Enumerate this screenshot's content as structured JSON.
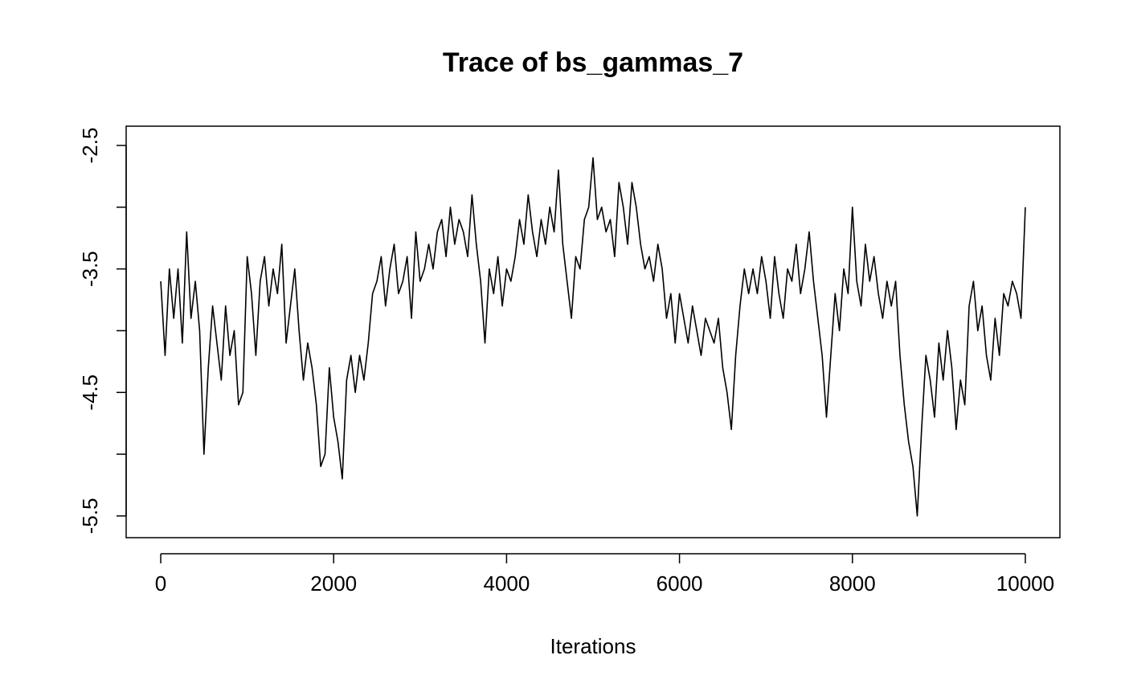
{
  "chart_data": {
    "type": "line",
    "title": "Trace of bs_gammas_7",
    "x_label": "Iterations",
    "x": [
      0,
      50,
      100,
      150,
      200,
      250,
      300,
      350,
      400,
      450,
      500,
      550,
      600,
      650,
      700,
      750,
      800,
      850,
      900,
      950,
      1000,
      1050,
      1100,
      1150,
      1200,
      1250,
      1300,
      1350,
      1400,
      1450,
      1500,
      1550,
      1600,
      1650,
      1700,
      1750,
      1800,
      1850,
      1900,
      1950,
      2000,
      2050,
      2100,
      2150,
      2200,
      2250,
      2300,
      2350,
      2400,
      2450,
      2500,
      2550,
      2600,
      2650,
      2700,
      2750,
      2800,
      2850,
      2900,
      2950,
      3000,
      3050,
      3100,
      3150,
      3200,
      3250,
      3300,
      3350,
      3400,
      3450,
      3500,
      3550,
      3600,
      3650,
      3700,
      3750,
      3800,
      3850,
      3900,
      3950,
      4000,
      4050,
      4100,
      4150,
      4200,
      4250,
      4300,
      4350,
      4400,
      4450,
      4500,
      4550,
      4600,
      4650,
      4700,
      4750,
      4800,
      4850,
      4900,
      4950,
      5000,
      5050,
      5100,
      5150,
      5200,
      5250,
      5300,
      5350,
      5400,
      5450,
      5500,
      5550,
      5600,
      5650,
      5700,
      5750,
      5800,
      5850,
      5900,
      5950,
      6000,
      6050,
      6100,
      6150,
      6200,
      6250,
      6300,
      6350,
      6400,
      6450,
      6500,
      6550,
      6600,
      6650,
      6700,
      6750,
      6800,
      6850,
      6900,
      6950,
      7000,
      7050,
      7100,
      7150,
      7200,
      7250,
      7300,
      7350,
      7400,
      7450,
      7500,
      7550,
      7600,
      7650,
      7700,
      7750,
      7800,
      7850,
      7900,
      7950,
      8000,
      8050,
      8100,
      8150,
      8200,
      8250,
      8300,
      8350,
      8400,
      8450,
      8500,
      8550,
      8600,
      8650,
      8700,
      8750,
      8800,
      8850,
      8900,
      8950,
      9000,
      9050,
      9100,
      9150,
      9200,
      9250,
      9300,
      9350,
      9400,
      9450,
      9500,
      9550,
      9600,
      9650,
      9700,
      9750,
      9800,
      9850,
      9900,
      9950,
      10000
    ],
    "values": [
      -3.6,
      -4.2,
      -3.5,
      -3.9,
      -3.5,
      -4.1,
      -3.2,
      -3.9,
      -3.6,
      -4.0,
      -5.0,
      -4.3,
      -3.8,
      -4.1,
      -4.4,
      -3.8,
      -4.2,
      -4.0,
      -4.6,
      -4.5,
      -3.4,
      -3.7,
      -4.2,
      -3.6,
      -3.4,
      -3.8,
      -3.5,
      -3.7,
      -3.3,
      -4.1,
      -3.8,
      -3.5,
      -4.0,
      -4.4,
      -4.1,
      -4.3,
      -4.6,
      -5.1,
      -5.0,
      -4.3,
      -4.7,
      -4.9,
      -5.2,
      -4.4,
      -4.2,
      -4.5,
      -4.2,
      -4.4,
      -4.1,
      -3.7,
      -3.6,
      -3.4,
      -3.8,
      -3.5,
      -3.3,
      -3.7,
      -3.6,
      -3.4,
      -3.9,
      -3.2,
      -3.6,
      -3.5,
      -3.3,
      -3.5,
      -3.2,
      -3.1,
      -3.4,
      -3.0,
      -3.3,
      -3.1,
      -3.2,
      -3.4,
      -2.9,
      -3.3,
      -3.6,
      -4.1,
      -3.5,
      -3.7,
      -3.4,
      -3.8,
      -3.5,
      -3.6,
      -3.4,
      -3.1,
      -3.3,
      -2.9,
      -3.2,
      -3.4,
      -3.1,
      -3.3,
      -3.0,
      -3.2,
      -2.7,
      -3.3,
      -3.6,
      -3.9,
      -3.4,
      -3.5,
      -3.1,
      -3.0,
      -2.6,
      -3.1,
      -3.0,
      -3.2,
      -3.1,
      -3.4,
      -2.8,
      -3.0,
      -3.3,
      -2.8,
      -3.0,
      -3.3,
      -3.5,
      -3.4,
      -3.6,
      -3.3,
      -3.5,
      -3.9,
      -3.7,
      -4.1,
      -3.7,
      -3.9,
      -4.1,
      -3.8,
      -4.0,
      -4.2,
      -3.9,
      -4.0,
      -4.1,
      -3.9,
      -4.3,
      -4.5,
      -4.8,
      -4.2,
      -3.8,
      -3.5,
      -3.7,
      -3.5,
      -3.7,
      -3.4,
      -3.6,
      -3.9,
      -3.4,
      -3.7,
      -3.9,
      -3.5,
      -3.6,
      -3.3,
      -3.7,
      -3.5,
      -3.2,
      -3.6,
      -3.9,
      -4.2,
      -4.7,
      -4.2,
      -3.7,
      -4.0,
      -3.5,
      -3.7,
      -3.0,
      -3.6,
      -3.8,
      -3.3,
      -3.6,
      -3.4,
      -3.7,
      -3.9,
      -3.6,
      -3.8,
      -3.6,
      -4.2,
      -4.6,
      -4.9,
      -5.1,
      -5.5,
      -4.8,
      -4.2,
      -4.4,
      -4.7,
      -4.1,
      -4.4,
      -4.0,
      -4.3,
      -4.8,
      -4.4,
      -4.6,
      -3.8,
      -3.6,
      -4.0,
      -3.8,
      -4.2,
      -4.4,
      -3.9,
      -4.2,
      -3.7,
      -3.8,
      -3.6,
      -3.7,
      -3.9,
      -3.0
    ],
    "color": "#000000",
    "xlim": [
      -400,
      10400
    ],
    "xticks": [
      0,
      2000,
      4000,
      6000,
      8000,
      10000
    ],
    "ylim": [
      -5.676,
      -2.344
    ],
    "yticks": [
      -2.5,
      {
        "value": -3,
        "label": null
      },
      -3.5,
      {
        "value": -4,
        "label": null
      },
      -4.5,
      {
        "value": -5,
        "label": null
      },
      -5.5
    ]
  }
}
